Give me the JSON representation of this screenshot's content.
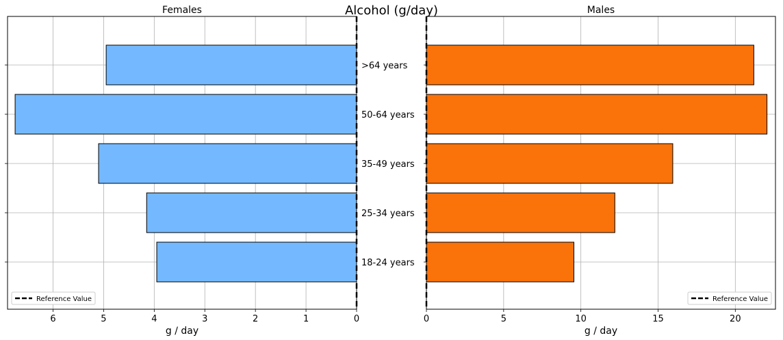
{
  "chart_data": {
    "type": "bar",
    "orientation": "horizontal",
    "title": "Alcohol (g/day)",
    "categories": [
      "18-24 years",
      "25-34 years",
      "35-49 years",
      "50-64 years",
      ">64 years"
    ],
    "panels": [
      {
        "title": "Females",
        "xlabel": "g / day",
        "xlim": [
          6.9,
          0
        ],
        "ticks": [
          6,
          5,
          4,
          3,
          2,
          1,
          0
        ],
        "tick_labels": [
          "6",
          "5",
          "4",
          "3",
          "2",
          "1",
          "0"
        ],
        "color": "#74b9ff",
        "values": [
          3.95,
          4.15,
          5.1,
          6.75,
          4.95
        ],
        "reference_value": 0,
        "legend": {
          "label": "Reference Value",
          "position": "lower-left"
        }
      },
      {
        "title": "Males",
        "xlabel": "g / day",
        "xlim": [
          0,
          22.6
        ],
        "ticks": [
          0,
          5,
          10,
          15,
          20
        ],
        "tick_labels": [
          "0",
          "5",
          "10",
          "15",
          "20"
        ],
        "color": "#fa720a",
        "values": [
          9.55,
          12.2,
          15.95,
          22.05,
          21.2
        ],
        "reference_value": 0,
        "legend": {
          "label": "Reference Value",
          "position": "lower-right"
        }
      }
    ],
    "grid": true
  }
}
